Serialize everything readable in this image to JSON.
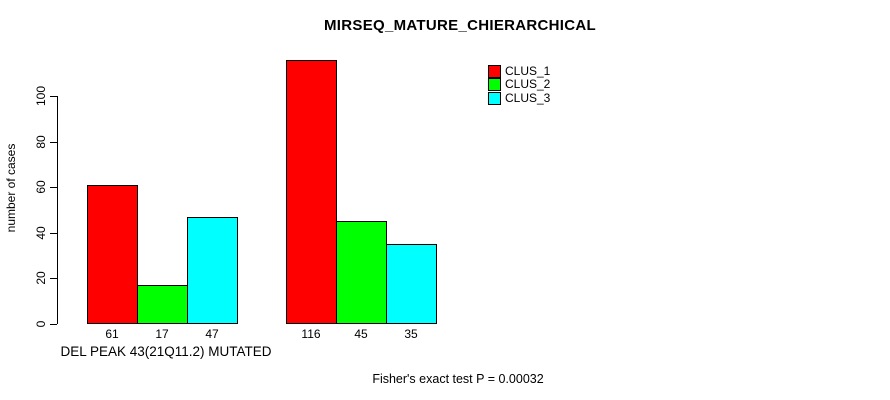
{
  "title": "MIRSEQ_MATURE_CHIERARCHICAL",
  "footer_text": "Fisher's exact test P = 0.00032",
  "colors": {
    "clus1": "#FF0000",
    "clus2": "#00FF00",
    "clus3": "#00FFFF",
    "axis": "#000000",
    "background": "#FFFFFF"
  },
  "chart_data": {
    "type": "bar",
    "title": "MIRSEQ_MATURE_CHIERARCHICAL",
    "xlabel": "",
    "ylabel": "number of cases",
    "ylim": [
      0,
      100
    ],
    "yticks": [
      0,
      20,
      40,
      60,
      80,
      100
    ],
    "grid": false,
    "legend_position": "top-right",
    "legend": [
      {
        "label": "CLUS_1",
        "color": "#FF0000"
      },
      {
        "label": "CLUS_2",
        "color": "#00FF00"
      },
      {
        "label": "CLUS_3",
        "color": "#00FFFF"
      }
    ],
    "groups": [
      {
        "label": "DEL PEAK 43(21Q11.2) MUTATED",
        "values": [
          61,
          17,
          47
        ]
      },
      {
        "label": "",
        "values": [
          116,
          45,
          35
        ]
      }
    ],
    "bar_value_labels": [
      [
        61,
        17,
        47
      ],
      [
        116,
        45,
        35
      ]
    ],
    "annotation": "Fisher's exact test P = 0.00032"
  }
}
